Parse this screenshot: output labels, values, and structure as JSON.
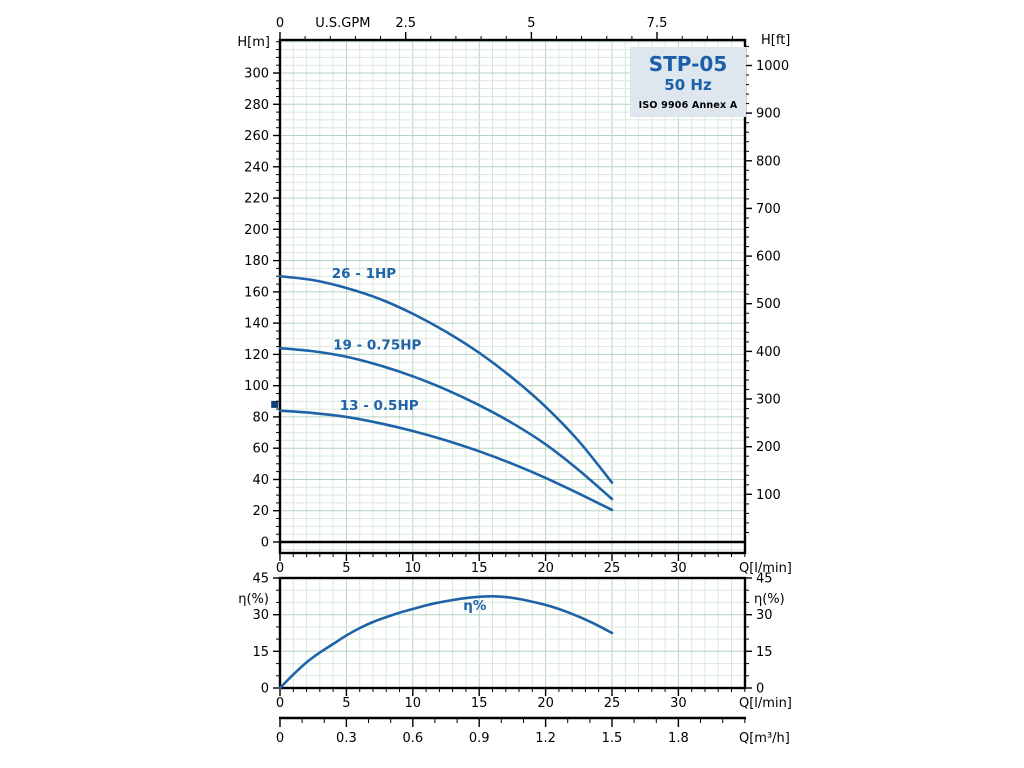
{
  "title_box": {
    "model": "STP-05",
    "frequency": "50 Hz",
    "standard": "ISO 9906 Annex A"
  },
  "colors": {
    "curve": "#1e63a8",
    "title_text": "#1b5fa8",
    "title_box_bg": "#dee7ee",
    "grid_minor": "#d9e8dc",
    "grid_major": "#b5d3c3",
    "axis": "#000000",
    "marker": "#123f77"
  },
  "chart_data": [
    {
      "id": "head-capacity",
      "type": "line",
      "title": "STP-05 50 Hz",
      "x_axis_bottom": {
        "label": "Q[l/min]",
        "ticks": [
          0,
          5,
          10,
          15,
          20,
          25,
          30
        ],
        "minor_step": 1,
        "max": 35
      },
      "x_axis_top": {
        "label": "U.S.GPM",
        "ticks": [
          0,
          2.5,
          5,
          7.5
        ],
        "minor_step": 0.5,
        "lpm_per_gpm": 3.7854,
        "label_x_gpm": 1.25
      },
      "y_axis_left": {
        "label": "H[m]",
        "ticks": [
          0,
          20,
          40,
          60,
          80,
          100,
          120,
          140,
          160,
          180,
          200,
          220,
          240,
          260,
          280,
          300
        ],
        "minor_step": 5,
        "min": -7,
        "max": 321
      },
      "y_axis_right": {
        "label": "H[ft]",
        "ticks": [
          100,
          200,
          300,
          400,
          500,
          600,
          700,
          800,
          900,
          1000
        ],
        "minor_step": 20,
        "m_per_ft": 0.3048
      },
      "series": [
        {
          "name": "26 - 1HP",
          "label_at": [
            3.9,
            169
          ],
          "points": [
            [
              0,
              170
            ],
            [
              2.5,
              167.5
            ],
            [
              5,
              162.5
            ],
            [
              7.5,
              155.5
            ],
            [
              10,
              146
            ],
            [
              12.5,
              134.5
            ],
            [
              15,
              121
            ],
            [
              17.5,
              105
            ],
            [
              20,
              86.5
            ],
            [
              22.5,
              64.5
            ],
            [
              25,
              38
            ]
          ]
        },
        {
          "name": "19 - 0.75HP",
          "label_at": [
            4.0,
            123
          ],
          "points": [
            [
              0,
              124
            ],
            [
              2.5,
              122
            ],
            [
              5,
              118.5
            ],
            [
              7.5,
              113
            ],
            [
              10,
              106
            ],
            [
              12.5,
              97.5
            ],
            [
              15,
              87.5
            ],
            [
              17.5,
              76
            ],
            [
              20,
              62.5
            ],
            [
              22.5,
              46
            ],
            [
              25,
              27.5
            ]
          ]
        },
        {
          "name": "13 - 0.5HP",
          "label_at": [
            4.5,
            84.5
          ],
          "points": [
            [
              0,
              84
            ],
            [
              2.5,
              82.5
            ],
            [
              5,
              80
            ],
            [
              7.5,
              76
            ],
            [
              10,
              71
            ],
            [
              12.5,
              65
            ],
            [
              15,
              58
            ],
            [
              17.5,
              50
            ],
            [
              20,
              41
            ],
            [
              22.5,
              31
            ],
            [
              25,
              20.5
            ]
          ]
        }
      ],
      "marker": {
        "q": -0.4,
        "h": 88
      }
    },
    {
      "id": "efficiency",
      "type": "line",
      "y_axis": {
        "label": "η(%)",
        "ticks": [
          0,
          15,
          30,
          45
        ],
        "minor_step": 5,
        "max": 45
      },
      "x_axis_bottom": {
        "label": "Q[l/min]",
        "ticks": [
          0,
          5,
          10,
          15,
          20,
          25,
          30
        ],
        "minor_step": 1
      },
      "series": [
        {
          "name": "η%",
          "label_at": [
            13.8,
            32
          ],
          "points": [
            [
              0,
              0
            ],
            [
              1,
              5.5
            ],
            [
              2,
              10.5
            ],
            [
              3,
              14.5
            ],
            [
              4,
              18
            ],
            [
              5,
              21.5
            ],
            [
              6,
              24.5
            ],
            [
              7,
              27
            ],
            [
              8,
              29
            ],
            [
              9,
              30.8
            ],
            [
              10,
              32.3
            ],
            [
              11,
              33.8
            ],
            [
              12,
              35
            ],
            [
              13,
              36
            ],
            [
              14,
              36.8
            ],
            [
              15,
              37.3
            ],
            [
              16,
              37.5
            ],
            [
              17,
              37.2
            ],
            [
              18,
              36.4
            ],
            [
              19,
              35.3
            ],
            [
              20,
              34
            ],
            [
              21,
              32.3
            ],
            [
              22,
              30.3
            ],
            [
              23,
              28
            ],
            [
              24,
              25.4
            ],
            [
              25,
              22.5
            ]
          ]
        }
      ]
    }
  ],
  "bottom_axis": {
    "label": "Q[m³/h]",
    "ticks": [
      0,
      0.3,
      0.6,
      0.9,
      1.2,
      1.5,
      1.8
    ],
    "minor_step": 0.1,
    "lpm_per_m3h": 16.6667
  }
}
